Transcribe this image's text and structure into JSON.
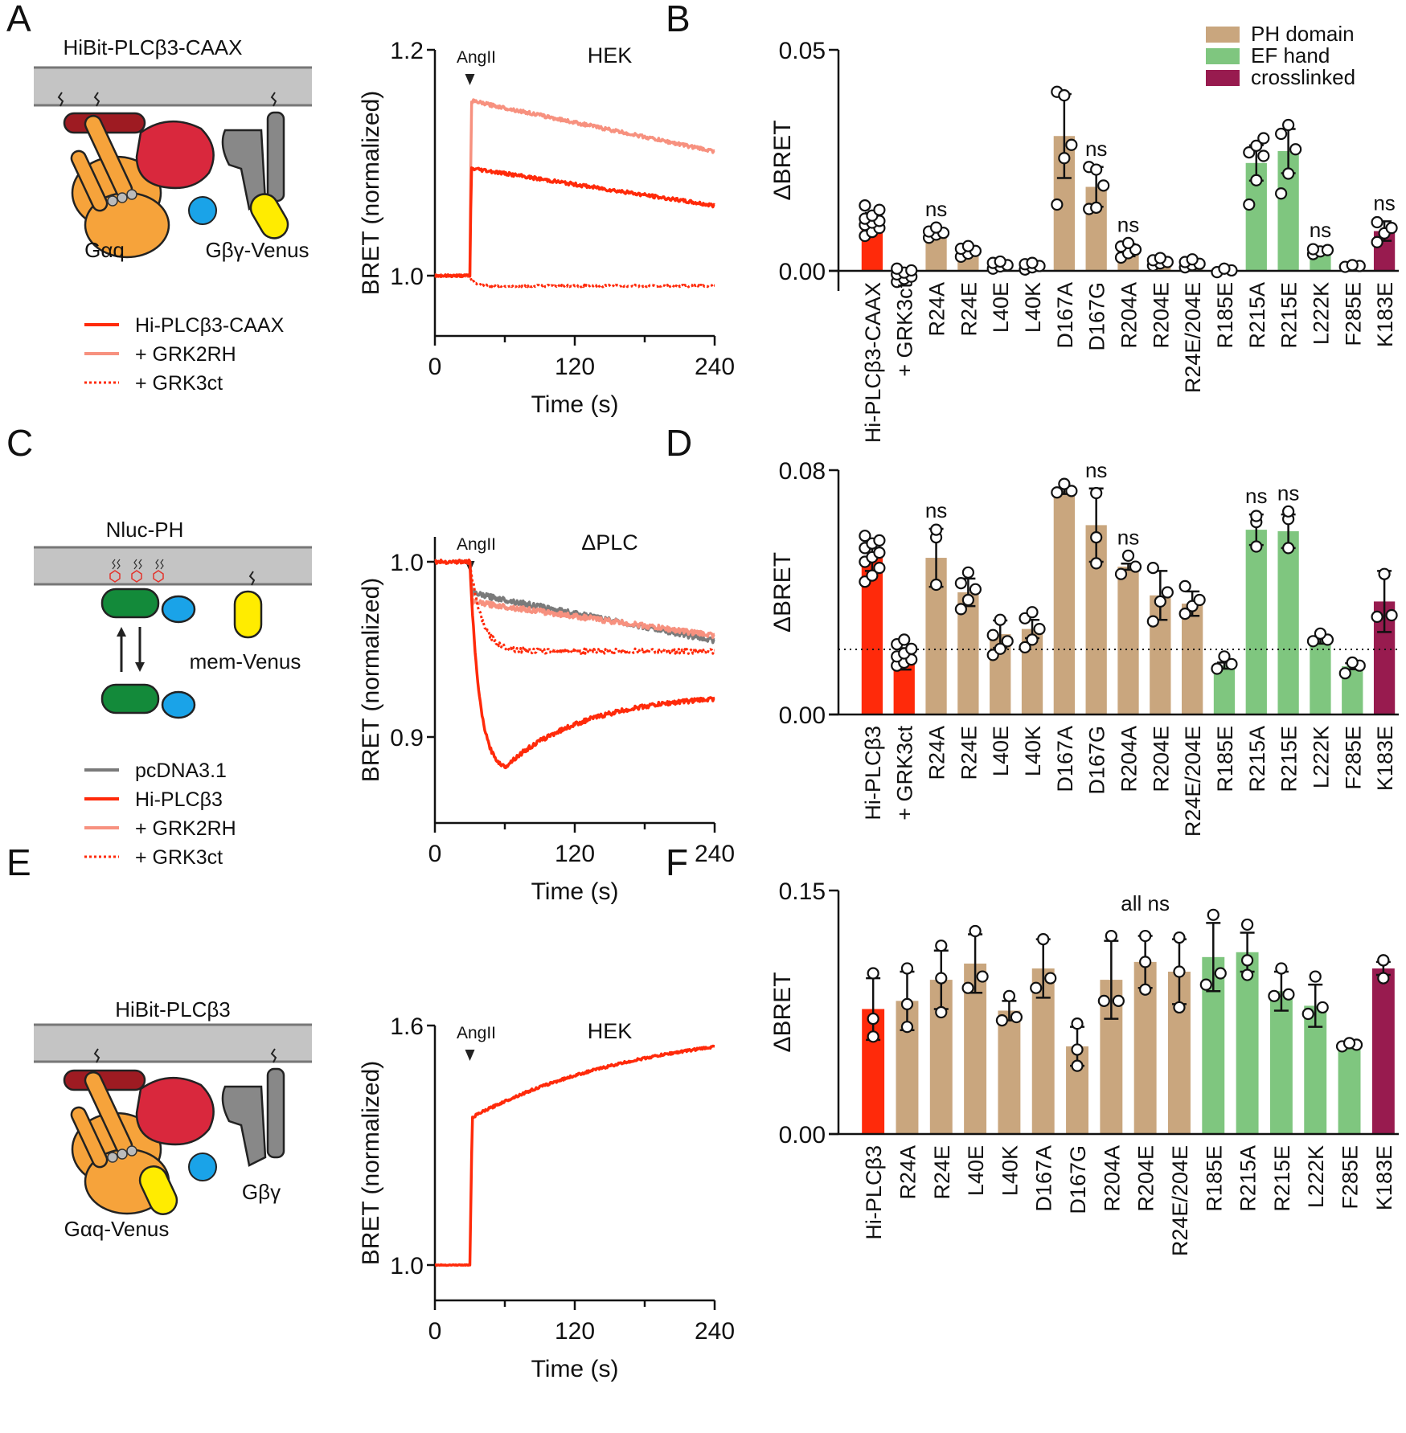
{
  "colors": {
    "red": "#ff2a0a",
    "salmon": "#f7917f",
    "gray": "#7a7a7a",
    "tan": "#c9a67e",
    "green": "#7fc67f",
    "crimson": "#981b4f",
    "membrane": "#c4c4c4"
  },
  "panels": {
    "A": {
      "letter": "A",
      "construct": "HiBit-PLCβ3-CAAX",
      "labels": [
        "Gαq",
        "Gβγ-Venus"
      ],
      "legend": [
        "Hi-PLCβ3-CAAX",
        "+ GRK2RH",
        "+ GRK3ct"
      ]
    },
    "B": {
      "letter": "B"
    },
    "C": {
      "letter": "C",
      "construct": "Nluc-PH",
      "labels": [
        "mem-Venus"
      ],
      "legend": [
        "pcDNA3.1",
        "Hi-PLCβ3",
        "+ GRK2RH",
        "+ GRK3ct"
      ]
    },
    "D": {
      "letter": "D"
    },
    "E": {
      "letter": "E",
      "construct": "HiBit-PLCβ3",
      "labels": [
        "Gαq-Venus",
        "Gβγ"
      ]
    },
    "F": {
      "letter": "F"
    }
  },
  "chart_data": [
    {
      "id": "A",
      "type": "line",
      "title": "",
      "annotation": "HEK",
      "stimulus": {
        "label": "AngII",
        "time": 30
      },
      "xlabel": "Time (s)",
      "ylabel": "BRET (normalized)",
      "xlim": [
        0,
        240
      ],
      "ylim": [
        0.95,
        1.2
      ],
      "xticks": [
        0,
        120,
        240
      ],
      "xminor": [
        60,
        180
      ],
      "yticks": [
        1.0,
        1.2
      ],
      "ytick_labels": [
        "1.0",
        "1.2"
      ],
      "xtick_labels": [
        "0",
        "120",
        "240"
      ],
      "series": [
        {
          "name": "Hi-PLCβ3-CAAX",
          "style": "solid",
          "color": "red",
          "baseline": 1.0,
          "peak": 1.095,
          "end": 1.062,
          "tau": 140
        },
        {
          "name": "+ GRK2RH",
          "style": "solid",
          "color": "salmon",
          "baseline": 1.0,
          "peak": 1.155,
          "end": 1.11,
          "tau": 400
        },
        {
          "name": "+ GRK3ct",
          "style": "dotted",
          "color": "red",
          "baseline": 1.0,
          "peak": 0.99,
          "end": 0.99,
          "plateau": 0.991
        }
      ]
    },
    {
      "id": "B",
      "type": "bar",
      "ylabel": "ΔBRET",
      "ylim": [
        0,
        0.05
      ],
      "yticks": [
        0,
        0.05
      ],
      "ytick_labels": [
        "0.00",
        "0.05"
      ],
      "legend": [
        {
          "label": "PH domain",
          "color": "tan"
        },
        {
          "label": "EF hand",
          "color": "green"
        },
        {
          "label": "crosslinked",
          "color": "crimson"
        }
      ],
      "categories": [
        "Hi-PLCβ3-CAAX",
        "+ GRK3ct",
        "R24A",
        "R24E",
        "L40E",
        "L40K",
        "D167A",
        "D167G",
        "R204A",
        "R204E",
        "R24E/204E",
        "R185E",
        "R215A",
        "R215E",
        "L222K",
        "F285E",
        "K183E"
      ],
      "groups": [
        "red",
        "red",
        "tan",
        "tan",
        "tan",
        "tan",
        "tan",
        "tan",
        "tan",
        "tan",
        "tan",
        "green",
        "green",
        "green",
        "green",
        "green",
        "crimson"
      ],
      "values": [
        0.0109,
        -0.0008,
        0.0085,
        0.0044,
        0.0013,
        0.001,
        0.0305,
        0.019,
        0.0047,
        0.002,
        0.0016,
        0.0002,
        0.0244,
        0.0271,
        0.0044,
        0.0011,
        0.009
      ],
      "sd": [
        0.0022,
        0.001,
        0.0009,
        0.0008,
        0.0006,
        0.0007,
        0.0095,
        0.0045,
        0.0014,
        0.0008,
        0.0009,
        0.0003,
        0.004,
        0.005,
        0.0007,
        0.0002,
        0.0022
      ],
      "points": [
        [
          0.0079,
          0.0088,
          0.0097,
          0.0104,
          0.0109,
          0.0113,
          0.0118,
          0.0125,
          0.0138,
          0.0148
        ],
        [
          -0.0025,
          -0.0018,
          -0.0013,
          -0.0008,
          -0.0004,
          0.0001,
          0.0005
        ],
        [
          0.0075,
          0.0082,
          0.0086,
          0.0089,
          0.0098
        ],
        [
          0.0032,
          0.0039,
          0.0045,
          0.005,
          0.0056
        ],
        [
          0.0005,
          0.001,
          0.0013,
          0.0018,
          0.0021
        ],
        [
          0.0003,
          0.0008,
          0.0011,
          0.0015,
          0.0018
        ],
        [
          0.015,
          0.0255,
          0.0285,
          0.0405,
          0.0397
        ],
        [
          0.014,
          0.0143,
          0.0193,
          0.0235,
          0.0229
        ],
        [
          0.003,
          0.004,
          0.0048,
          0.0055,
          0.0063
        ],
        [
          0.0012,
          0.0017,
          0.002,
          0.0024,
          0.0029
        ],
        [
          0.0008,
          0.0013,
          0.0016,
          0.002,
          0.0026
        ],
        [
          -0.0003,
          0.0001,
          0.0005
        ],
        [
          0.015,
          0.0205,
          0.026,
          0.0268,
          0.0283,
          0.03
        ],
        [
          0.0175,
          0.022,
          0.0275,
          0.031,
          0.033
        ],
        [
          0.0038,
          0.0044,
          0.0047,
          0.0049
        ],
        [
          0.0009,
          0.0011,
          0.0013
        ],
        [
          0.0065,
          0.0085,
          0.0097,
          0.011
        ]
      ],
      "annotations": [
        "",
        "",
        "ns",
        "",
        "",
        "",
        "",
        "ns",
        "ns",
        "",
        "",
        "",
        "",
        "",
        "ns",
        "",
        "ns"
      ]
    },
    {
      "id": "C",
      "type": "line",
      "annotation": "ΔPLC",
      "stimulus": {
        "label": "AngII",
        "time": 30
      },
      "xlabel": "Time (s)",
      "ylabel": "BRET (normalized)",
      "xlim": [
        0,
        240
      ],
      "ylim": [
        0.855,
        1.01
      ],
      "xticks": [
        0,
        120,
        240
      ],
      "xminor": [
        60,
        180
      ],
      "yticks": [
        0.9,
        1.0
      ],
      "ytick_labels": [
        "0.9",
        "1.0"
      ],
      "xtick_labels": [
        "0",
        "120",
        "240"
      ],
      "series": [
        {
          "name": "pcDNA3.1",
          "style": "solid",
          "color": "gray",
          "baseline": 1.0,
          "drop": 0.982,
          "end": 0.955
        },
        {
          "name": "Hi-PLCβ3",
          "style": "solid",
          "color": "red",
          "baseline": 1.0,
          "min": 0.883,
          "min_time": 60,
          "end": 0.925
        },
        {
          "name": "+ GRK2RH",
          "style": "solid",
          "color": "salmon",
          "baseline": 1.0,
          "drop": 0.977,
          "end": 0.958
        },
        {
          "name": "+ GRK3ct",
          "style": "dotted",
          "color": "red",
          "baseline": 1.0,
          "plateau": 0.949,
          "end": 0.948
        }
      ]
    },
    {
      "id": "D",
      "type": "bar",
      "ylabel": "ΔBRET",
      "ylim": [
        0,
        0.08
      ],
      "yticks": [
        0,
        0.08
      ],
      "ytick_labels": [
        "0.00",
        "0.08"
      ],
      "reference_line": 0.0213,
      "categories": [
        "Hi-PLCβ3",
        "+ GRK3ct",
        "R24A",
        "R24E",
        "L40E",
        "L40K",
        "D167A",
        "D167G",
        "R204A",
        "R204E",
        "R24E/204E",
        "R185E",
        "R215A",
        "R215E",
        "L222K",
        "F285E",
        "K183E"
      ],
      "groups": [
        "red",
        "red",
        "tan",
        "tan",
        "tan",
        "tan",
        "tan",
        "tan",
        "tan",
        "tan",
        "tan",
        "green",
        "green",
        "green",
        "green",
        "green",
        "crimson"
      ],
      "values": [
        0.0515,
        0.0182,
        0.0513,
        0.04,
        0.0263,
        0.028,
        0.0732,
        0.062,
        0.0484,
        0.039,
        0.0363,
        0.016,
        0.0605,
        0.06,
        0.024,
        0.0158,
        0.037
      ],
      "sd": [
        0.0045,
        0.0035,
        0.0095,
        0.0045,
        0.0045,
        0.003,
        0.001,
        0.012,
        0.001,
        0.008,
        0.004,
        0.001,
        0.005,
        0.0055,
        0.0008,
        0.001,
        0.01
      ],
      "points": [
        [
          0.0435,
          0.0455,
          0.048,
          0.05,
          0.0515,
          0.053,
          0.0545,
          0.056,
          0.057,
          0.0585
        ],
        [
          0.016,
          0.017,
          0.018,
          0.019,
          0.02,
          0.0215,
          0.023,
          0.0245
        ],
        [
          0.0425,
          0.058,
          0.0605
        ],
        [
          0.0345,
          0.0375,
          0.041,
          0.043,
          0.0465
        ],
        [
          0.0195,
          0.0215,
          0.024,
          0.026,
          0.031
        ],
        [
          0.022,
          0.0245,
          0.028,
          0.0315,
          0.0335
        ],
        [
          0.0727,
          0.0732,
          0.0755
        ],
        [
          0.0495,
          0.058,
          0.0725
        ],
        [
          0.046,
          0.0484,
          0.052
        ],
        [
          0.0305,
          0.037,
          0.04,
          0.048
        ],
        [
          0.033,
          0.0355,
          0.0375,
          0.042
        ],
        [
          0.015,
          0.0165,
          0.019
        ],
        [
          0.055,
          0.063,
          0.065
        ],
        [
          0.0545,
          0.064,
          0.0665
        ],
        [
          0.024,
          0.0245,
          0.0265
        ],
        [
          0.0135,
          0.016,
          0.017
        ],
        [
          0.032,
          0.0325,
          0.046
        ]
      ],
      "annotations": [
        "",
        "",
        "ns",
        "",
        "",
        "",
        "",
        "ns",
        "ns",
        "",
        "",
        "",
        "ns",
        "ns",
        "",
        "",
        ""
      ]
    },
    {
      "id": "E",
      "type": "line",
      "annotation": "HEK",
      "stimulus": {
        "label": "AngII",
        "time": 30
      },
      "xlabel": "Time (s)",
      "ylabel": "BRET (normalized)",
      "xlim": [
        0,
        240
      ],
      "ylim": [
        0.92,
        1.6
      ],
      "xticks": [
        0,
        120,
        240
      ],
      "xminor": [
        60,
        180
      ],
      "yticks": [
        1.0,
        1.6
      ],
      "ytick_labels": [
        "1.0",
        "1.6"
      ],
      "xtick_labels": [
        "0",
        "120",
        "240"
      ],
      "series": [
        {
          "name": "Hi-PLCβ3",
          "style": "solid",
          "color": "red",
          "baseline": 1.0,
          "jump": 1.37,
          "end": 1.547
        }
      ]
    },
    {
      "id": "F",
      "type": "bar",
      "ylabel": "ΔBRET",
      "ylim": [
        0,
        0.15
      ],
      "yticks": [
        0,
        0.15
      ],
      "ytick_labels": [
        "0.00",
        "0.15"
      ],
      "annotation": "all ns",
      "categories": [
        "Hi-PLCβ3",
        "R24A",
        "R24E",
        "L40E",
        "L40K",
        "D167A",
        "D167G",
        "R204A",
        "R204E",
        "R24E/204E",
        "R185E",
        "R215A",
        "R215E",
        "L222K",
        "F285E",
        "K183E"
      ],
      "groups": [
        "red",
        "tan",
        "tan",
        "tan",
        "tan",
        "tan",
        "tan",
        "tan",
        "tan",
        "tan",
        "green",
        "green",
        "green",
        "green",
        "green",
        "crimson"
      ],
      "values": [
        0.077,
        0.082,
        0.095,
        0.105,
        0.076,
        0.102,
        0.054,
        0.095,
        0.106,
        0.1,
        0.109,
        0.112,
        0.088,
        0.079,
        0.055,
        0.102
      ],
      "sd": [
        0.019,
        0.018,
        0.018,
        0.018,
        0.006,
        0.018,
        0.012,
        0.024,
        0.016,
        0.02,
        0.021,
        0.012,
        0.012,
        0.013,
        0.002,
        0.004
      ],
      "points": [
        [
          0.06,
          0.071,
          0.099
        ],
        [
          0.066,
          0.08,
          0.102
        ],
        [
          0.075,
          0.096,
          0.116
        ],
        [
          0.09,
          0.097,
          0.125
        ],
        [
          0.07,
          0.072,
          0.085
        ],
        [
          0.09,
          0.096,
          0.12
        ],
        [
          0.042,
          0.052,
          0.068
        ],
        [
          0.082,
          0.082,
          0.122
        ],
        [
          0.089,
          0.106,
          0.122
        ],
        [
          0.078,
          0.1,
          0.121
        ],
        [
          0.092,
          0.099,
          0.135
        ],
        [
          0.098,
          0.107,
          0.129
        ],
        [
          0.085,
          0.086,
          0.102
        ],
        [
          0.074,
          0.078,
          0.097
        ],
        [
          0.054,
          0.055,
          0.056
        ],
        [
          0.096,
          0.107,
          0.107
        ]
      ]
    }
  ]
}
